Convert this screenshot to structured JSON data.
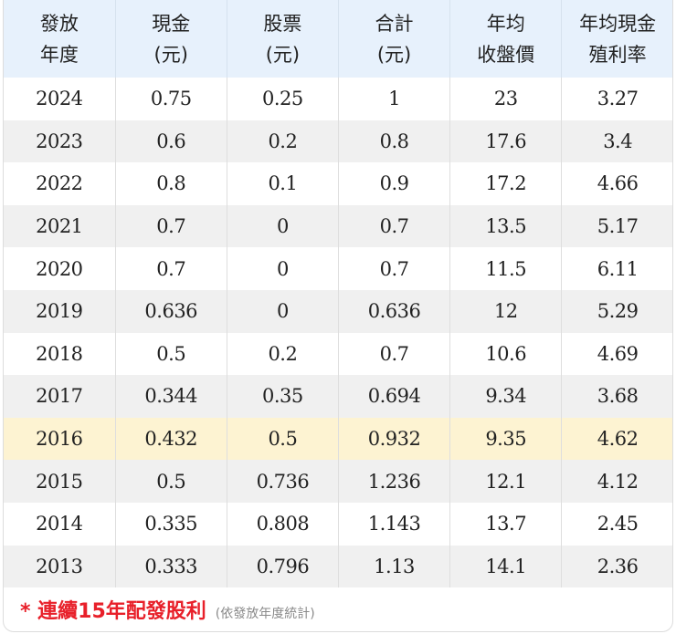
{
  "table": {
    "headers": [
      {
        "line1": "發放",
        "line2": "年度"
      },
      {
        "line1": "現金",
        "line2": "(元)"
      },
      {
        "line1": "股票",
        "line2": "(元)"
      },
      {
        "line1": "合計",
        "line2": "(元)"
      },
      {
        "line1": "年均",
        "line2": "收盤價"
      },
      {
        "line1": "年均現金",
        "line2": "殖利率"
      }
    ],
    "rows": [
      {
        "year": "2024",
        "cash": "0.75",
        "stock": "0.25",
        "total": "1",
        "avg_price": "23",
        "yield": "3.27"
      },
      {
        "year": "2023",
        "cash": "0.6",
        "stock": "0.2",
        "total": "0.8",
        "avg_price": "17.6",
        "yield": "3.4"
      },
      {
        "year": "2022",
        "cash": "0.8",
        "stock": "0.1",
        "total": "0.9",
        "avg_price": "17.2",
        "yield": "4.66"
      },
      {
        "year": "2021",
        "cash": "0.7",
        "stock": "0",
        "total": "0.7",
        "avg_price": "13.5",
        "yield": "5.17"
      },
      {
        "year": "2020",
        "cash": "0.7",
        "stock": "0",
        "total": "0.7",
        "avg_price": "11.5",
        "yield": "6.11"
      },
      {
        "year": "2019",
        "cash": "0.636",
        "stock": "0",
        "total": "0.636",
        "avg_price": "12",
        "yield": "5.29"
      },
      {
        "year": "2018",
        "cash": "0.5",
        "stock": "0.2",
        "total": "0.7",
        "avg_price": "10.6",
        "yield": "4.69"
      },
      {
        "year": "2017",
        "cash": "0.344",
        "stock": "0.35",
        "total": "0.694",
        "avg_price": "9.34",
        "yield": "3.68"
      },
      {
        "year": "2016",
        "cash": "0.432",
        "stock": "0.5",
        "total": "0.932",
        "avg_price": "9.35",
        "yield": "4.62",
        "highlighted": true
      },
      {
        "year": "2015",
        "cash": "0.5",
        "stock": "0.736",
        "total": "1.236",
        "avg_price": "12.1",
        "yield": "4.12"
      },
      {
        "year": "2014",
        "cash": "0.335",
        "stock": "0.808",
        "total": "1.143",
        "avg_price": "13.7",
        "yield": "2.45"
      },
      {
        "year": "2013",
        "cash": "0.333",
        "stock": "0.796",
        "total": "1.13",
        "avg_price": "14.1",
        "yield": "2.36"
      }
    ]
  },
  "footer": {
    "main_text": "* 連續15年配發股利",
    "note_text": "(依發放年度統計)"
  },
  "colors": {
    "header_bg": "#e7f1fc",
    "row_alt_bg": "#f0f0f0",
    "highlight_bg": "#fdf3d2",
    "footer_accent": "#e8202a"
  }
}
